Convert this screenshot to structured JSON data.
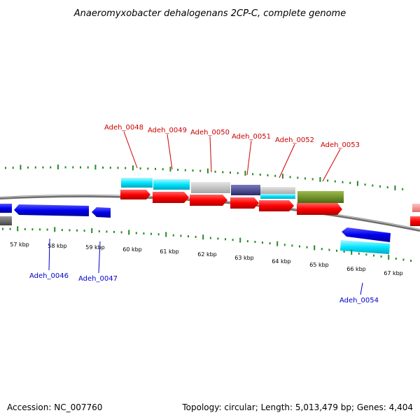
{
  "title": "Anaeromyxobacter dehalogenans 2CP-C, complete genome",
  "accession": "Accession: NC_007760",
  "summary": "Topology: circular; Length: 5,013,479 bp; Genes: 4,404",
  "kbp_labels": [
    "57 kbp",
    "58 kbp",
    "59 kbp",
    "60 kbp",
    "61 kbp",
    "62 kbp",
    "63 kbp",
    "64 kbp",
    "65 kbp",
    "66 kbp",
    "67 kbp"
  ],
  "top_genes": [
    "Adeh_0048",
    "Adeh_0049",
    "Adeh_0050",
    "Adeh_0051",
    "Adeh_0052",
    "Adeh_0053"
  ],
  "bottom_genes": [
    "Adeh_0046",
    "Adeh_0047",
    "Adeh_0054"
  ],
  "colors": {
    "forward_cds": "#ff0000",
    "reverse_cds": "#0000ee",
    "cyan": "#00e5ff",
    "grey": "#bbbbbb",
    "slate": "#3d3d8a",
    "olive": "#6a8a1e",
    "ticks": "#228b22",
    "backbone": "#888888",
    "forward_label": "#cc0000",
    "reverse_label": "#0000cc"
  }
}
